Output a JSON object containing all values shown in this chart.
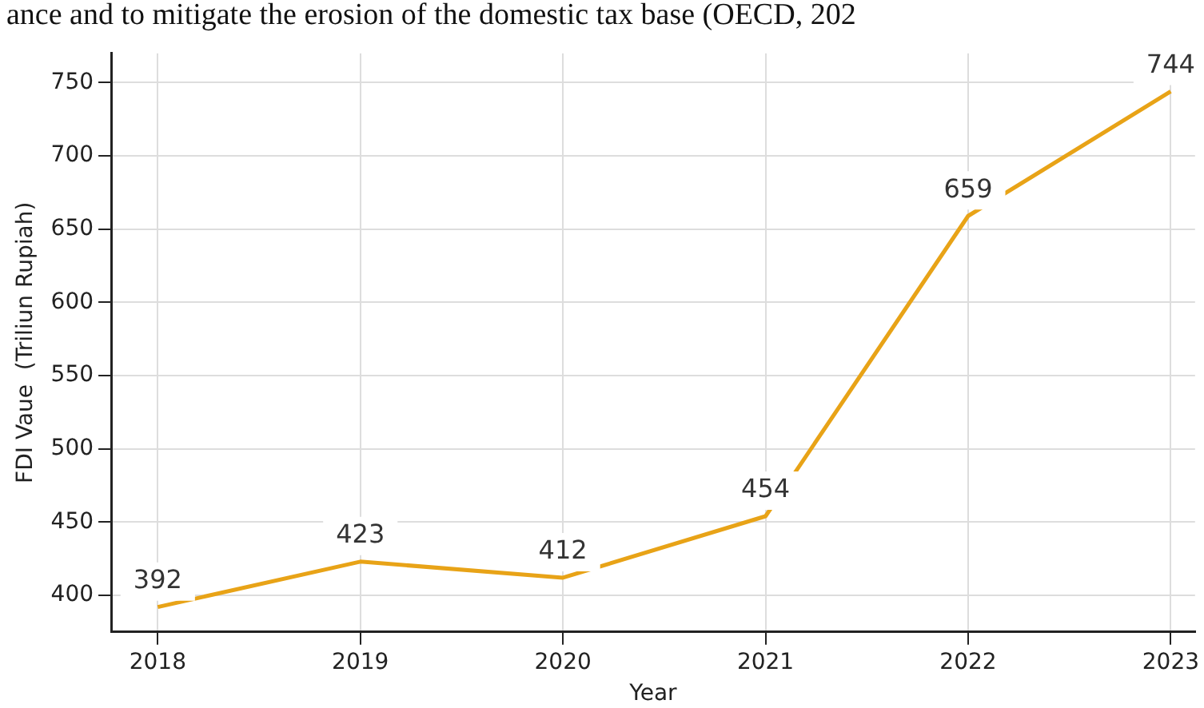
{
  "chart_data": {
    "type": "line",
    "xlabel": "Year",
    "ylabel": "FDI Vaue  (Triliun Rupiah)",
    "annotations": [
      "ance and to mitigate the erosion of the domestic tax base (OECD, 202"
    ],
    "x": [
      2018,
      2019,
      2020,
      2021,
      2022,
      2023
    ],
    "series": [
      {
        "color": "#e8a317",
        "values": [
          392,
          423,
          412,
          454,
          659,
          744
        ]
      }
    ],
    "xlim": [
      2017.77,
      2023.12
    ],
    "xticks": [
      2018,
      2019,
      2020,
      2021,
      2022,
      2023
    ],
    "ylim": [
      375,
      770
    ],
    "yticks": [
      400,
      450,
      500,
      550,
      600,
      650,
      700,
      750
    ],
    "grid": true,
    "legend": false,
    "data_labels": true,
    "marker": "none",
    "line_style": "solid"
  }
}
